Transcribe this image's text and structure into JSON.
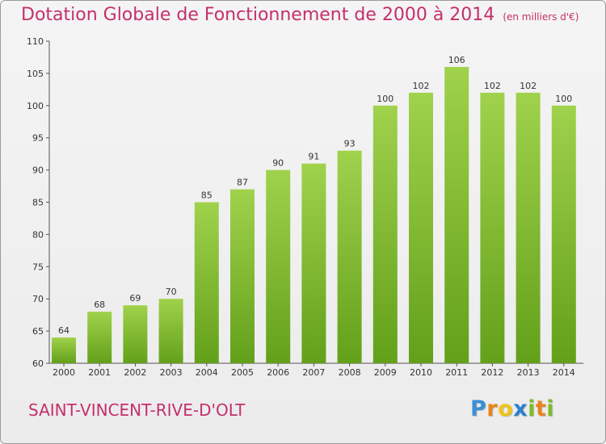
{
  "chart_data": {
    "type": "bar",
    "title": "Dotation Globale de Fonctionnement de 2000 à 2014",
    "unit": "(en milliers d'€)",
    "categories": [
      "2000",
      "2001",
      "2002",
      "2003",
      "2004",
      "2005",
      "2006",
      "2007",
      "2008",
      "2009",
      "2010",
      "2011",
      "2012",
      "2013",
      "2014"
    ],
    "values": [
      64,
      68,
      69,
      70,
      85,
      87,
      90,
      91,
      93,
      100,
      102,
      106,
      102,
      102,
      100
    ],
    "ylim": [
      60,
      110
    ],
    "yticks": [
      60,
      65,
      70,
      75,
      80,
      85,
      90,
      95,
      100,
      105,
      110
    ],
    "xlabel": "",
    "ylabel": "",
    "grid": false,
    "bar_color": "#7cbc2b"
  },
  "commune": "SAINT-VINCENT-RIVE-D'OLT",
  "logo": {
    "text": "Proxiti",
    "letters": [
      "P",
      "r",
      "o",
      "x",
      "i",
      "t",
      "i"
    ],
    "colors": [
      "#3a8fd6",
      "#e8841b",
      "#f2c318",
      "#2a7fcf",
      "#7cbc2b",
      "#e8841b",
      "#7cbc2b"
    ]
  }
}
